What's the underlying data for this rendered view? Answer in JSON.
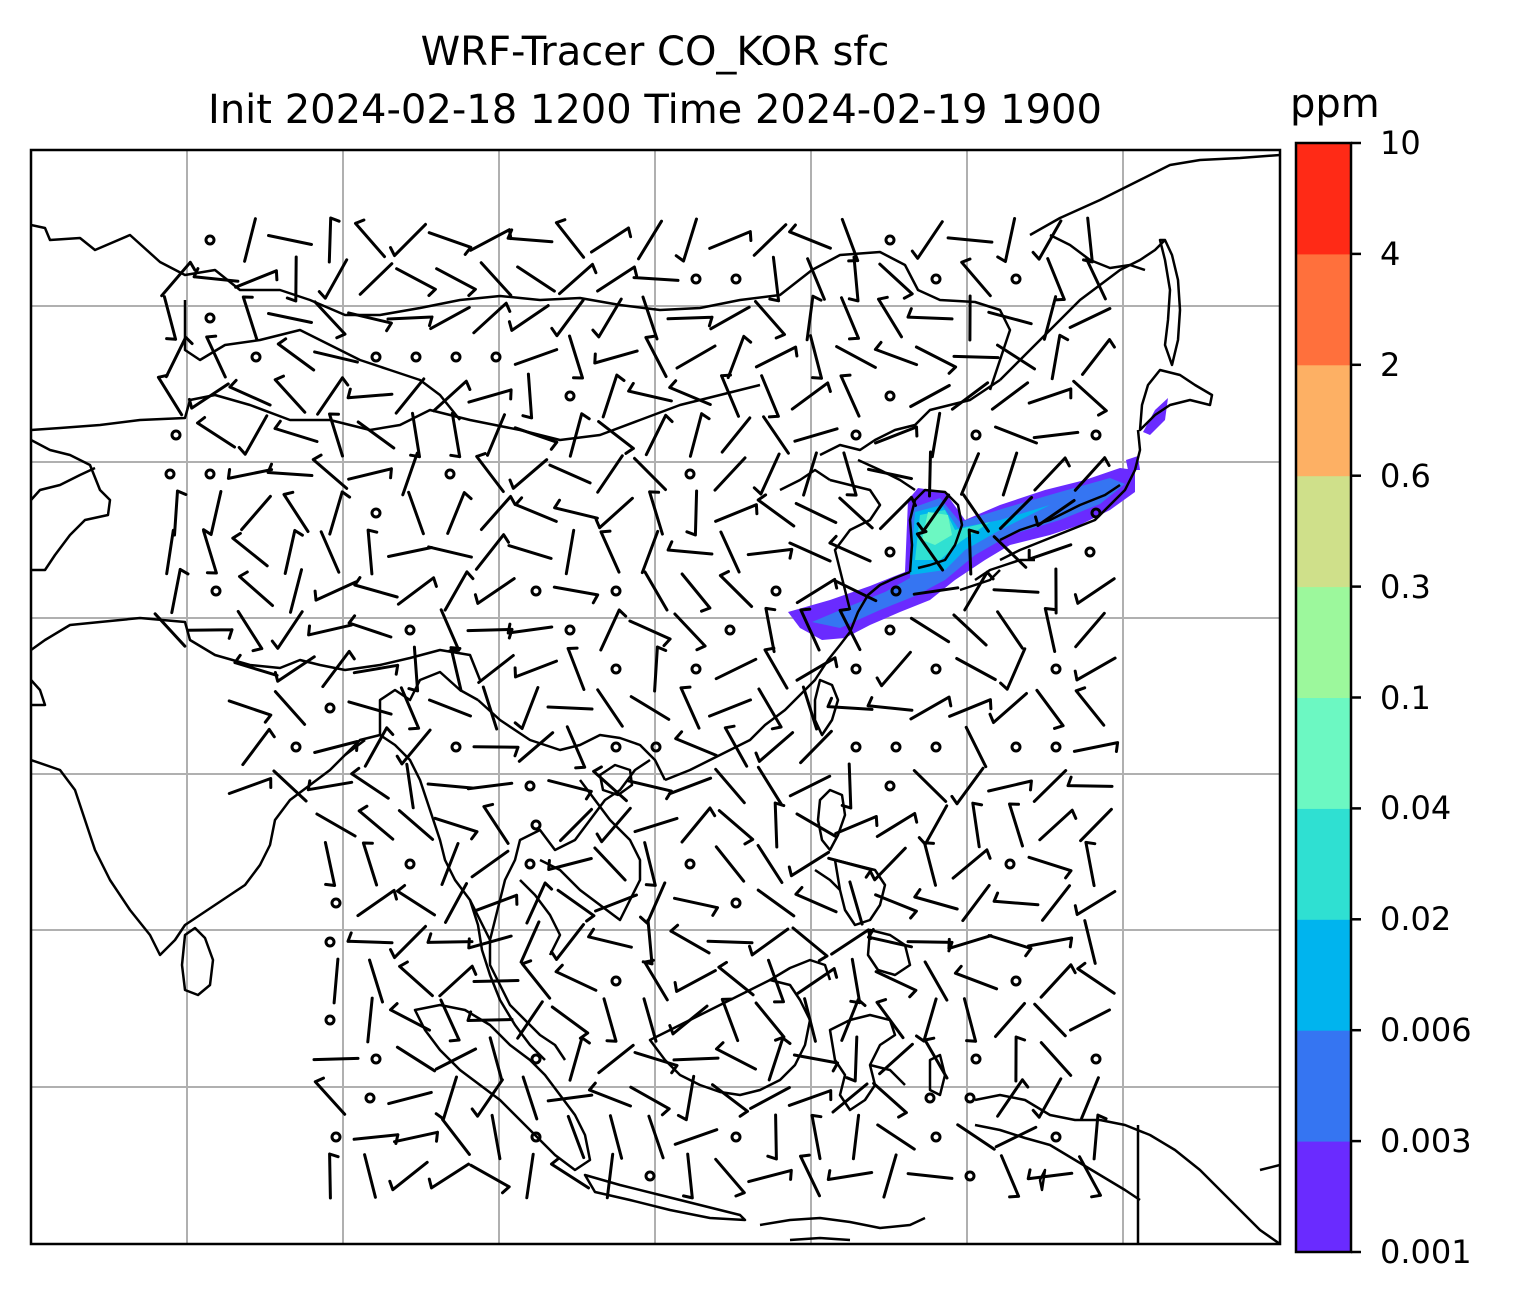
{
  "title": {
    "line1": "WRF-Tracer CO_KOR sfc",
    "line2": "Init 2024-02-18 1200 Time 2024-02-19 1900"
  },
  "colorbar": {
    "unit": "ppm",
    "levels": [
      "0.001",
      "0.003",
      "0.006",
      "0.02",
      "0.04",
      "0.1",
      "0.3",
      "0.6",
      "2",
      "4",
      "10"
    ],
    "colors": [
      "#6a2bff",
      "#3575f2",
      "#00b4ee",
      "#2fe0d2",
      "#6cf8c2",
      "#9cf89c",
      "#cfe08a",
      "#fdb064",
      "#ff703c",
      "#ff2a16"
    ]
  },
  "map": {
    "gridlines": "on",
    "coastline_color": "#000000",
    "grid_color": "#b0b0b0",
    "plume_colors": {
      "outer": "#6a2bff",
      "mid": "#3575f2",
      "inner": "#00b4ee",
      "core": "#2fe0d2",
      "peak": "#6cf8c2"
    }
  }
}
